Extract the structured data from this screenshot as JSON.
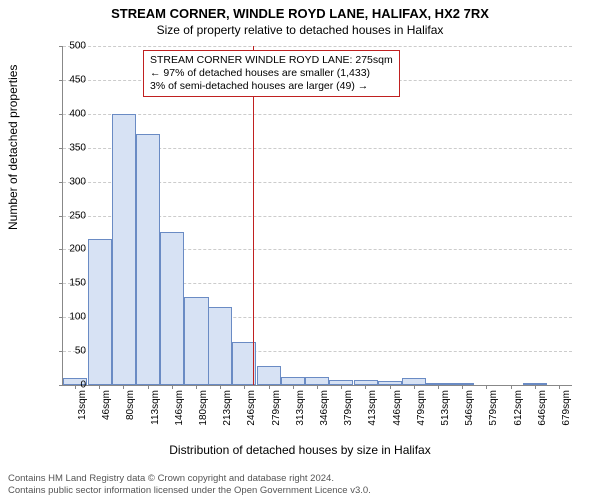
{
  "title": "STREAM CORNER, WINDLE ROYD LANE, HALIFAX, HX2 7RX",
  "subtitle": "Size of property relative to detached houses in Halifax",
  "ylabel": "Number of detached properties",
  "xlabel": "Distribution of detached houses by size in Halifax",
  "footer_line1": "Contains HM Land Registry data © Crown copyright and database right 2024.",
  "footer_line2": "Contains public sector information licensed under the Open Government Licence v3.0.",
  "annot_line1": "STREAM CORNER WINDLE ROYD LANE: 275sqm",
  "annot_line2": "← 97% of detached houses are smaller (1,433)",
  "annot_line3": "3% of semi-detached houses are larger (49) →",
  "chart": {
    "type": "histogram",
    "ylim": [
      0,
      500
    ],
    "ytick_step": 50,
    "x_start": 13,
    "x_step": 33.3,
    "x_count": 21,
    "x_unit": "sqm",
    "bar_fill": "#d7e2f4",
    "bar_border": "#6a8bc4",
    "grid_color": "#cccccc",
    "axis_color": "#888888",
    "marker_value": 275,
    "marker_color": "#c02020",
    "background": "#ffffff",
    "tick_fontsize": 10,
    "title_fontsize": 13,
    "label_fontsize": 12,
    "bars": [
      {
        "x": 13,
        "y": 10
      },
      {
        "x": 47,
        "y": 215
      },
      {
        "x": 80,
        "y": 400
      },
      {
        "x": 113,
        "y": 370
      },
      {
        "x": 146,
        "y": 225
      },
      {
        "x": 180,
        "y": 130
      },
      {
        "x": 213,
        "y": 115
      },
      {
        "x": 246,
        "y": 63
      },
      {
        "x": 280,
        "y": 28
      },
      {
        "x": 313,
        "y": 12
      },
      {
        "x": 346,
        "y": 12
      },
      {
        "x": 379,
        "y": 8
      },
      {
        "x": 413,
        "y": 8
      },
      {
        "x": 446,
        "y": 6
      },
      {
        "x": 479,
        "y": 10
      },
      {
        "x": 513,
        "y": 3
      },
      {
        "x": 546,
        "y": 2
      },
      {
        "x": 579,
        "y": 0
      },
      {
        "x": 612,
        "y": 0
      },
      {
        "x": 646,
        "y": 2
      },
      {
        "x": 679,
        "y": 0
      }
    ]
  }
}
